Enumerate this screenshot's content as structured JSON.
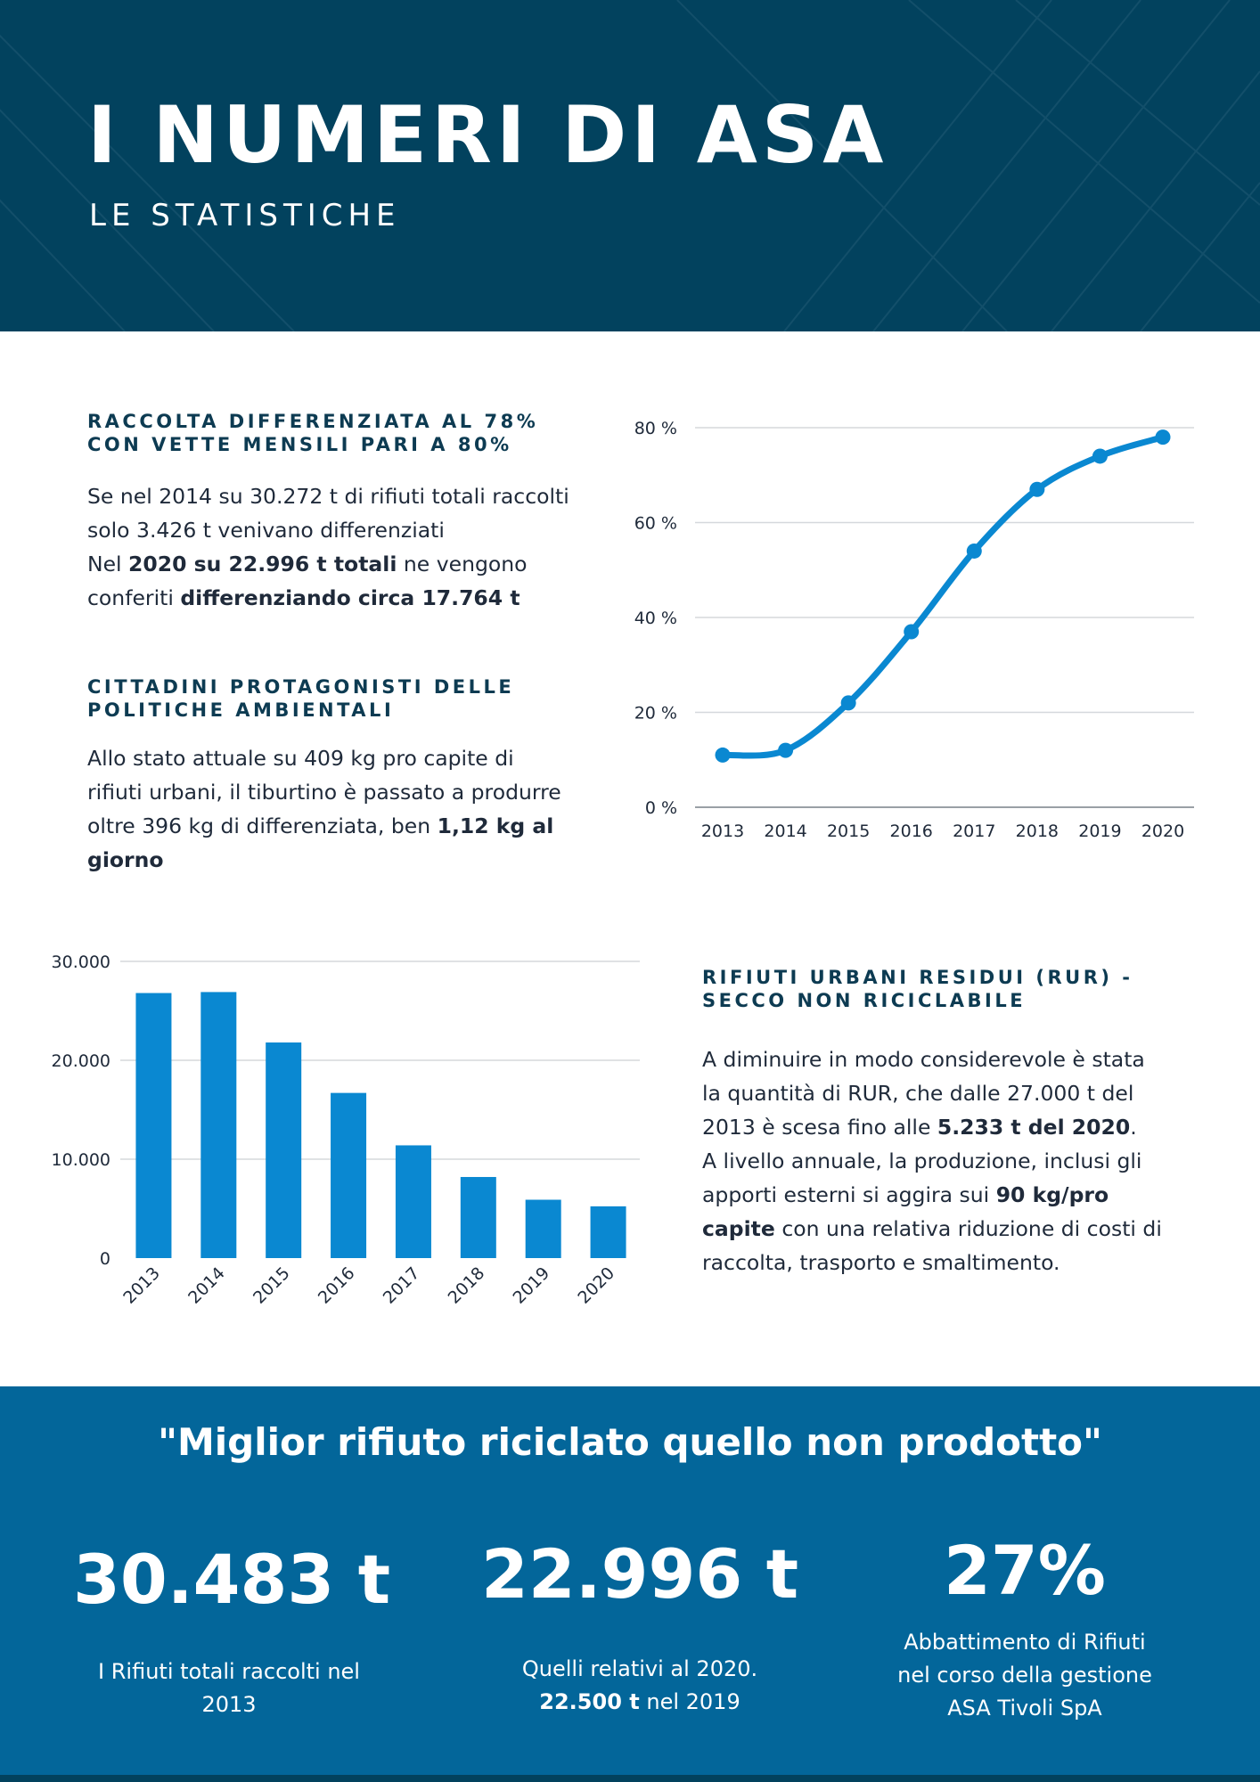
{
  "header": {
    "title": "I NUMERI DI ASA",
    "subtitle": "LE STATISTICHE"
  },
  "section1": {
    "title_lines": [
      "RACCOLTA DIFFERENZIATA AL 78%",
      "CON VETTE MENSILI PARI A 80%"
    ],
    "line1": "Se nel 2014 su 30.272 t di rifiuti totali raccolti",
    "line2": "solo 3.426 t venivano differenziati",
    "line3_pre": "Nel ",
    "line3_bold": "2020 su 22.996 t totali",
    "line3_post": " ne vengono",
    "line4_pre": "conferiti ",
    "line4_bold": "differenziando circa 17.764 t"
  },
  "section2": {
    "title_lines": [
      "CITTADINI PROTAGONISTI DELLE",
      "POLITICHE AMBIENTALI"
    ],
    "line1": "Allo stato attuale su 409 kg pro capite di",
    "line2": "rifiuti urbani, il tiburtino è passato a produrre",
    "line3_pre": "oltre 396 kg di differenziata, ben ",
    "line3_bold": "1,12 kg al",
    "line4_bold": "giorno"
  },
  "section3": {
    "title_lines": [
      "RIFIUTI URBANI RESIDUI (RUR) -",
      "SECCO NON RICICLABILE"
    ],
    "line1": "A diminuire in modo considerevole è stata",
    "line2": "la quantità di RUR, che dalle 27.000 t del",
    "line3_pre": "2013 è scesa fino alle ",
    "line3_bold": "5.233 t del 2020",
    "line3_post": ".",
    "line4": "A livello annuale, la produzione, inclusi gli",
    "line5_pre": "apporti esterni si aggira sui ",
    "line5_bold": "90 kg/pro",
    "line6_bold": "capite",
    "line6_post": " con una relativa riduzione di costi di",
    "line7": "raccolta, trasporto e smaltimento."
  },
  "chart_data": [
    {
      "type": "line",
      "x": [
        "2013",
        "2014",
        "2015",
        "2016",
        "2017",
        "2018",
        "2019",
        "2020"
      ],
      "series": [
        {
          "values": [
            11,
            12,
            22,
            37,
            54,
            67,
            74,
            78
          ]
        }
      ],
      "ylim": [
        0,
        80
      ],
      "yticks": [
        "0 %",
        "20 %",
        "40 %",
        "60 %",
        "80 %"
      ],
      "grid": true,
      "color": "#0a88d1"
    },
    {
      "type": "bar",
      "categories": [
        "2013",
        "2014",
        "2015",
        "2016",
        "2017",
        "2018",
        "2019",
        "2020"
      ],
      "values": [
        26800,
        26900,
        21800,
        16700,
        11400,
        8200,
        5900,
        5233
      ],
      "ylim": [
        0,
        30000
      ],
      "yticks": [
        "0",
        "10.000",
        "20.000",
        "30.000"
      ],
      "grid": true,
      "color": "#0a88d1"
    }
  ],
  "footer": {
    "quote": "\"Miglior rifiuto riciclato quello non prodotto\"",
    "stats": [
      {
        "value": "30.483 t",
        "label_line1": "I Rifiuti totali raccolti nel",
        "label_line2": "2013"
      },
      {
        "value": "22.996 t",
        "label_line1": "Quelli relativi al 2020.",
        "label_line2_bold": "22.500 t",
        "label_line2_post": " nel 2019"
      },
      {
        "value": "27%",
        "label_line1": "Abbattimento di Rifiuti",
        "label_line2": "nel corso della gestione",
        "label_line3": "ASA Tivoli SpA"
      }
    ]
  },
  "colors": {
    "header_bg": "#02425e",
    "footer_bg": "#03669a",
    "accent": "#0a88d1",
    "heading": "#0d3b52"
  }
}
